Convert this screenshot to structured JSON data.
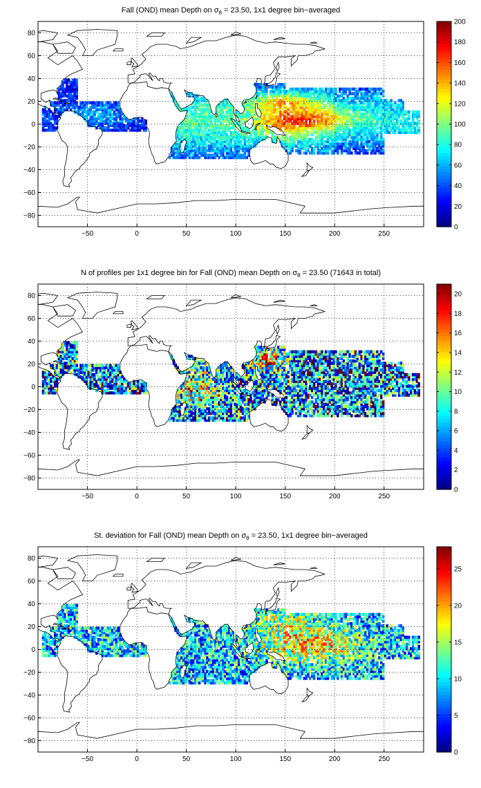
{
  "panels": [
    {
      "id": "mean-depth",
      "title": {
        "before": "Fall (OND) mean Depth on ",
        "sigma": "σ",
        "sub": "θ",
        "after": " = 23.50, 1x1 degree bin−averaged"
      },
      "colorbar": {
        "min": 0,
        "max": 200,
        "ticks": [
          "0",
          "20",
          "40",
          "60",
          "80",
          "100",
          "120",
          "140",
          "160",
          "180",
          "200"
        ]
      }
    },
    {
      "id": "profile-count",
      "title": {
        "before": "N of profiles per 1x1 degree bin for Fall (OND) mean Depth on ",
        "sigma": "σ",
        "sub": "θ",
        "after": " = 23.50 (71643 in total)"
      },
      "colorbar": {
        "min": 0,
        "max": 21,
        "ticks": [
          "0",
          "2",
          "4",
          "6",
          "8",
          "10",
          "12",
          "14",
          "16",
          "18",
          "20"
        ]
      }
    },
    {
      "id": "std-dev",
      "title": {
        "before": "St. deviation for Fall (OND) mean Depth on ",
        "sigma": "σ",
        "sub": "θ",
        "after": " = 23.50, 1x1 degree bin−averaged"
      },
      "colorbar": {
        "min": 0,
        "max": 28,
        "ticks": [
          "0",
          "5",
          "10",
          "15",
          "20",
          "25"
        ]
      }
    }
  ],
  "axes": {
    "lon_range": [
      -100,
      290
    ],
    "lat_range": [
      -90,
      90
    ],
    "x_ticks": [
      "−50",
      "0",
      "50",
      "100",
      "150",
      "200",
      "250"
    ],
    "y_ticks": [
      "80",
      "60",
      "40",
      "20",
      "0",
      "−20",
      "−40",
      "−60",
      "−80"
    ],
    "grid": "dotted"
  },
  "colormap": "jet",
  "colors": {
    "frame": "#000000",
    "coast": "#000000",
    "grid": "#000000"
  }
}
